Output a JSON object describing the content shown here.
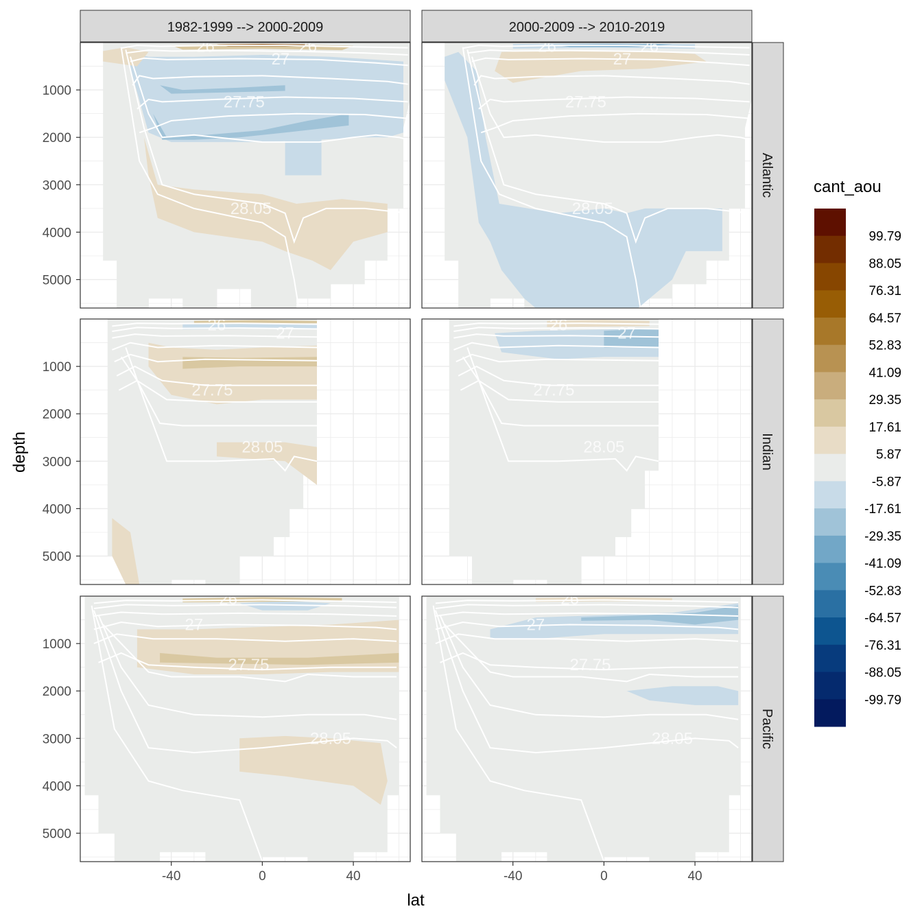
{
  "chart_data": {
    "type": "heatmap",
    "title": "",
    "xlabel": "lat",
    "ylabel": "depth",
    "xlim": [
      -80,
      65
    ],
    "ylim": [
      5600,
      0
    ],
    "y_reversed": true,
    "x_ticks": [
      -40,
      0,
      40
    ],
    "y_ticks": [
      1000,
      2000,
      3000,
      4000,
      5000
    ],
    "column_facets": [
      "1982-1999 --> 2000-2009",
      "2000-2009 --> 2010-2019"
    ],
    "row_facets": [
      "Atlantic",
      "Indian",
      "Pacific"
    ],
    "grid": true,
    "legend": {
      "title": "cant_aou",
      "placement": "right",
      "labels": [
        "99.79",
        "88.05",
        "76.31",
        "64.57",
        "52.83",
        "41.09",
        "29.35",
        "17.61",
        "5.87",
        "-5.87",
        "-17.61",
        "-29.35",
        "-41.09",
        "-52.83",
        "-64.57",
        "-76.31",
        "-88.05",
        "-99.79"
      ],
      "colors": [
        "#5e1000",
        "#732d00",
        "#874600",
        "#985d05",
        "#a87829",
        "#b89252",
        "#c9ad7d",
        "#d9c8a1",
        "#e8dcc6",
        "#eaecea",
        "#c8dbe8",
        "#a0c3d8",
        "#72a7c7",
        "#4a8cb5",
        "#2a70a3",
        "#0d5590",
        "#073b7d",
        "#052a6e",
        "#031a5e"
      ]
    },
    "contour_labels": [
      "26",
      "27",
      "27.75",
      "28.05"
    ],
    "colors": {
      "background_fill": "#eaecea",
      "positive_light": "#e8dcc6",
      "positive_mid": "#d9c8a1",
      "negative_light": "#c8dbe8",
      "negative_mid": "#a0c3d8",
      "negative_strong": "#72a7c7",
      "contour": "#ffffff",
      "strip_bg": "#d9d9d9",
      "grid": "#ebebeb"
    }
  }
}
